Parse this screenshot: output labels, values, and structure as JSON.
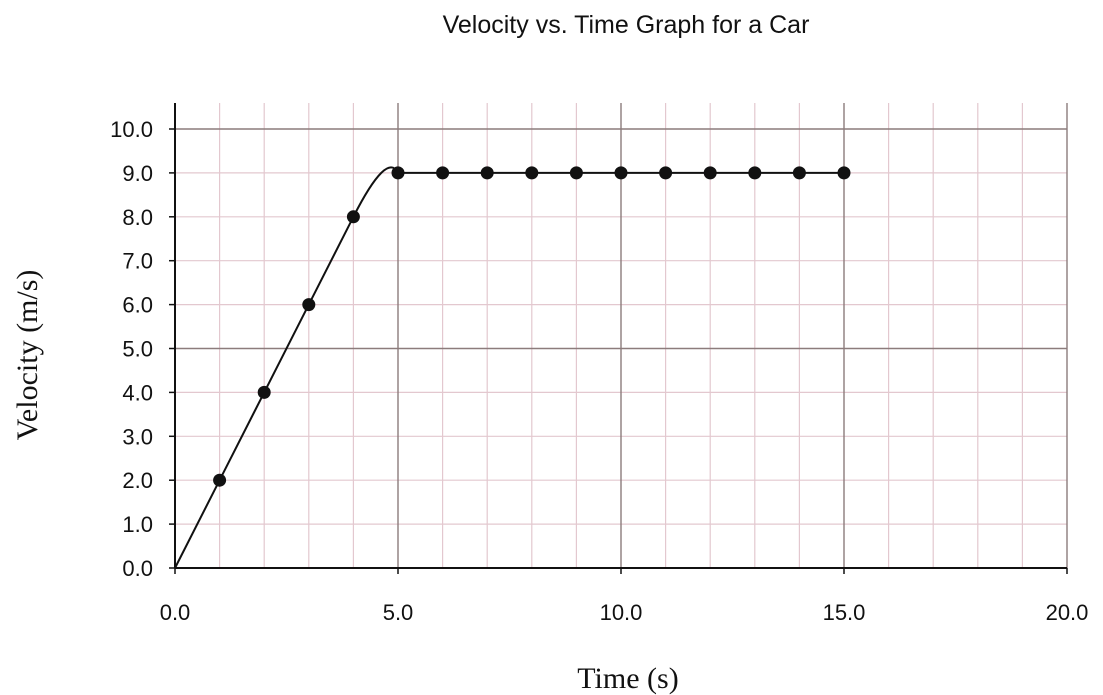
{
  "chart_data": {
    "type": "line",
    "title": "Velocity vs. Time Graph for a Car",
    "xlabel": "Time (s)",
    "ylabel": "Velocity (m/s)",
    "xlim": [
      0,
      20
    ],
    "ylim": [
      0,
      10
    ],
    "x_ticks": [
      "0.0",
      "5.0",
      "10.0",
      "15.0",
      "20.0"
    ],
    "y_ticks": [
      "0.0",
      "1.0",
      "2.0",
      "3.0",
      "4.0",
      "5.0",
      "6.0",
      "7.0",
      "8.0",
      "9.0",
      "10.0"
    ],
    "grid": true,
    "curve": {
      "x": [
        0,
        1,
        2,
        3,
        4,
        4.5,
        5,
        6,
        7,
        8,
        9,
        10,
        11,
        12,
        13,
        14,
        15
      ],
      "y": [
        0,
        2,
        4,
        6,
        8,
        8.8,
        9,
        9,
        9,
        9,
        9,
        9,
        9,
        9,
        9,
        9,
        9
      ]
    },
    "points": {
      "x": [
        1,
        2,
        3,
        4,
        5,
        6,
        7,
        8,
        9,
        10,
        11,
        12,
        13,
        14,
        15
      ],
      "y": [
        2,
        4,
        6,
        8,
        9,
        9,
        9,
        9,
        9,
        9,
        9,
        9,
        9,
        9,
        9
      ]
    },
    "colors": {
      "minor_grid": "#e3c8cf",
      "major_grid": "#8c7c7c",
      "line": "#111111",
      "marker": "#111111"
    }
  }
}
